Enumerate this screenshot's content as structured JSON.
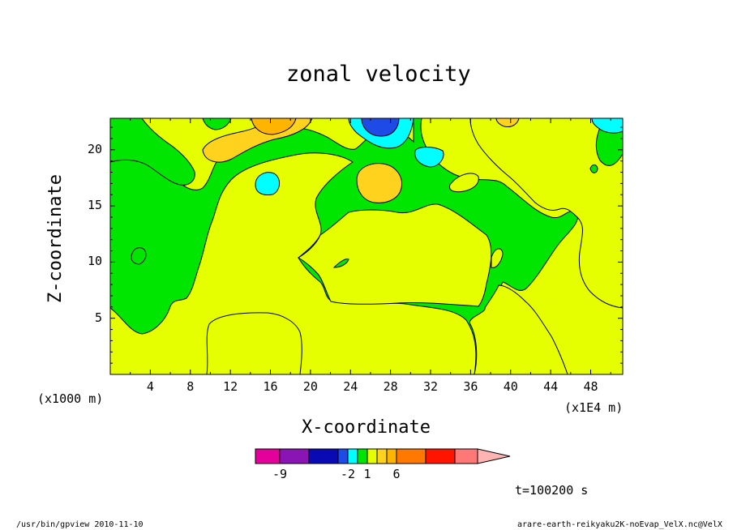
{
  "chart_data": {
    "type": "heatmap",
    "title": "zonal velocity",
    "xlabel": "X-coordinate",
    "ylabel": "Z-coordinate",
    "x_unit_left": "(x1000 m)",
    "x_unit_right": "(x1E4 m)",
    "time_label": "t=100200 s",
    "xlim": [
      0,
      51.2
    ],
    "ylim": [
      0,
      22.8
    ],
    "x_ticks": [
      4,
      8,
      12,
      16,
      20,
      24,
      28,
      32,
      36,
      40,
      44,
      48
    ],
    "y_ticks": [
      5,
      10,
      15,
      20
    ],
    "colorbar": {
      "tick_labels": [
        "-9",
        "-2",
        "1",
        "6"
      ],
      "colors": [
        "#e4009a",
        "#8a14b4",
        "#0a0ab4",
        "#1e4ae6",
        "#00ffff",
        "#00e600",
        "#e6ff00",
        "#ffd21e",
        "#ffb400",
        "#ff7800",
        "#ff1400",
        "#ff7878",
        "#ffb4b4"
      ]
    },
    "regions": [
      {
        "value": "1 to 2",
        "color": "#e6ff00",
        "description": "background"
      },
      {
        "value": "0 to 1",
        "color": "#00e600",
        "description": "green regions"
      },
      {
        "value": "2 to 4",
        "color": "#ffd21e"
      },
      {
        "value": "4 to 6",
        "color": "#ffb400"
      },
      {
        "value": "-1 to 0",
        "color": "#00ffff"
      },
      {
        "value": "-2 to -1",
        "color": "#1e4ae6"
      }
    ]
  },
  "footer": {
    "left": "/usr/bin/gpview  2010-11-10",
    "right": "arare-earth-reikyaku2K-noEvap_VelX.nc@VelX"
  }
}
